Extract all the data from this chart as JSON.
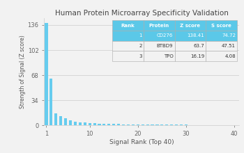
{
  "title": "Human Protein Microarray Specificity Validation",
  "xlabel": "Signal Rank (Top 40)",
  "ylabel": "Strength of Signal (Z score)",
  "xlim": [
    0.5,
    41
  ],
  "ylim": [
    0,
    145
  ],
  "yticks": [
    0,
    34,
    68,
    102,
    136
  ],
  "xticks": [
    1,
    10,
    20,
    30,
    40
  ],
  "bar_color": "#66ccee",
  "z_scores": [
    138.41,
    63.7,
    16.19,
    12.5,
    9.8,
    7.2,
    5.5,
    4.3,
    3.8,
    3.2,
    2.9,
    2.6,
    2.3,
    2.1,
    1.9,
    1.8,
    1.7,
    1.6,
    1.5,
    1.4,
    1.3,
    1.25,
    1.2,
    1.15,
    1.1,
    1.05,
    1.0,
    0.95,
    0.9,
    0.85,
    0.8,
    0.78,
    0.75,
    0.72,
    0.7,
    0.68,
    0.65,
    0.63,
    0.61,
    0.59
  ],
  "table_header": [
    "Rank",
    "Protein",
    "Z score",
    "S score"
  ],
  "table_rows": [
    [
      "1",
      "CD276",
      "138.41",
      "74.72"
    ],
    [
      "2",
      "BTBD9",
      "63.7",
      "47.51"
    ],
    [
      "3",
      "TPO",
      "16.19",
      "4.08"
    ]
  ],
  "table_header_bg": "#5bc8e8",
  "table_row1_bg": "#5bc8e8",
  "table_row_bg": "#ffffff",
  "fig_bg": "#f0f0f0"
}
